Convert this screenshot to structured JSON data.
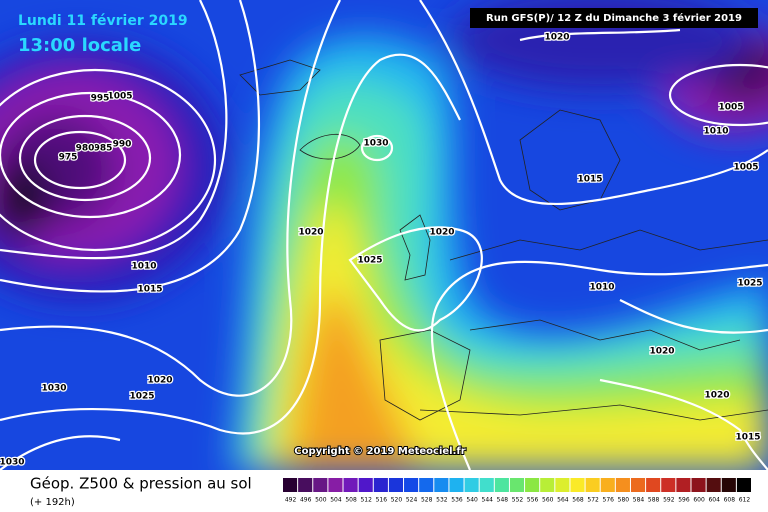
{
  "header": {
    "date": "Lundi 11 février 2019",
    "time": "13:00 locale",
    "run": "Run GFS(P)/ 12 Z du Dimanche 3 février 2019"
  },
  "copyright": "Copyright © 2019 Meteociel.fr",
  "isobar_labels": [
    "1020",
    "1005",
    "995",
    "990",
    "985",
    "980",
    "975",
    "1030",
    "1020",
    "1020",
    "1025",
    "1010",
    "1015",
    "1015",
    "1010",
    "1005",
    "1005",
    "1010",
    "1025",
    "1020",
    "1020",
    "1015",
    "1030",
    "1025",
    "1020",
    "1030"
  ],
  "legend": {
    "title": "Géop. Z500 & pression au sol",
    "subtitle": "(+ 192h)",
    "scale": [
      492,
      496,
      500,
      504,
      508,
      512,
      516,
      520,
      524,
      528,
      532,
      536,
      540,
      544,
      548,
      552,
      556,
      560,
      564,
      568,
      572,
      576,
      580,
      584,
      588,
      592,
      596,
      600,
      604,
      608,
      612
    ]
  }
}
